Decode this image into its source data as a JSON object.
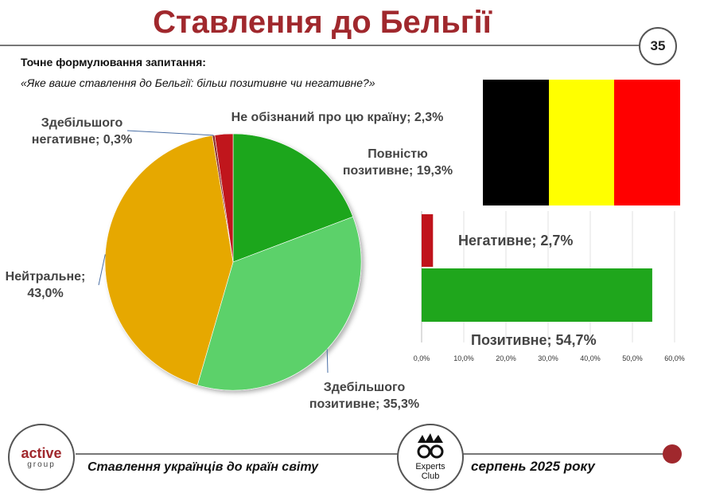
{
  "page": {
    "title": "Ставлення до Бельгії",
    "page_number": "35",
    "question_label": "Точне формулювання запитання:",
    "question_text": "«Яке ваше ставлення до Бельгії: більш позитивне чи негативне?»"
  },
  "flag": {
    "colors": [
      "#000000",
      "#ffff00",
      "#ff0000"
    ]
  },
  "chart_data": [
    {
      "type": "pie",
      "slices": [
        {
          "label": "Повністю позитивне; 19,3%",
          "label_lines": [
            "Повністю",
            "позитивне; 19,3%"
          ],
          "value": 19.3,
          "color": "#1fa61c"
        },
        {
          "label": "Здебільшого позитивне; 35,3%",
          "label_lines": [
            "Здебільшого",
            "позитивне; 35,3%"
          ],
          "value": 35.3,
          "color": "#5bd16a"
        },
        {
          "label": "Нейтральне; 43,0%",
          "label_lines": [
            "Нейтральне;",
            "43,0%"
          ],
          "value": 43.0,
          "color": "#e6a800"
        },
        {
          "label": "Здебільшого негативне; 0,3%",
          "label_lines": [
            "Здебільшого",
            "негативне; 0,3%"
          ],
          "value": 0.3,
          "color": "#8a2a2a"
        },
        {
          "label": "Не обізнаний про цю країну; 2,3%",
          "label_lines": [
            "Не обізнаний про цю країну; 2,3%"
          ],
          "value": 2.3,
          "color": "#c0131b"
        }
      ]
    },
    {
      "type": "bar",
      "orientation": "horizontal",
      "categories": [
        "Негативне",
        "Позитивне"
      ],
      "values": [
        2.7,
        54.7
      ],
      "data_labels": [
        "Негативне; 2,7%",
        "Позитивне; 54,7%"
      ],
      "colors": [
        "#c0131b",
        "#1fa61c"
      ],
      "xlim": [
        0,
        60
      ],
      "ticks": [
        "0,0%",
        "10,0%",
        "20,0%",
        "30,0%",
        "40,0%",
        "50,0%",
        "60,0%"
      ],
      "grid": true
    }
  ],
  "footer": {
    "left_text": "Ставлення українців до країн світу",
    "right_text": "серпень 2025 року",
    "logo_left": [
      "active",
      "group"
    ],
    "logo_center": [
      "Experts",
      "Club"
    ]
  }
}
